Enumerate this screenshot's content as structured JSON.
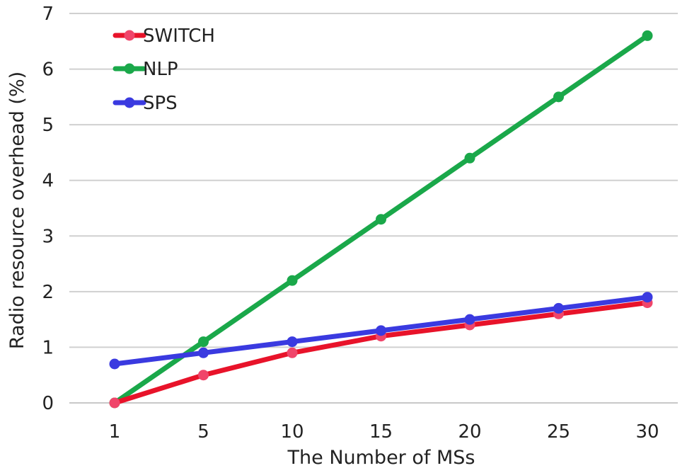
{
  "chart_data": {
    "type": "line",
    "title": "",
    "xlabel": "The Number of MSs",
    "ylabel": "Radio resource overhead (%)",
    "categories": [
      "1",
      "5",
      "10",
      "15",
      "20",
      "25",
      "30"
    ],
    "ylim": [
      0,
      7
    ],
    "yticks": [
      "0",
      "1",
      "2",
      "3",
      "4",
      "5",
      "6",
      "7"
    ],
    "grid": true,
    "legend_position": "top-left",
    "series": [
      {
        "name": "SWITCH",
        "color": "#e8132a",
        "marker_color": "#f0456a",
        "values": [
          0,
          0.5,
          0.9,
          1.2,
          1.4,
          1.6,
          1.8
        ]
      },
      {
        "name": "NLP",
        "color": "#1aa84a",
        "marker_color": "#1aa84a",
        "values": [
          0,
          1.1,
          2.2,
          3.3,
          4.4,
          5.5,
          6.6
        ]
      },
      {
        "name": "SPS",
        "color": "#3a3ae0",
        "marker_color": "#3a3ae0",
        "values": [
          0.7,
          0.9,
          1.1,
          1.3,
          1.5,
          1.7,
          1.9
        ]
      }
    ]
  }
}
